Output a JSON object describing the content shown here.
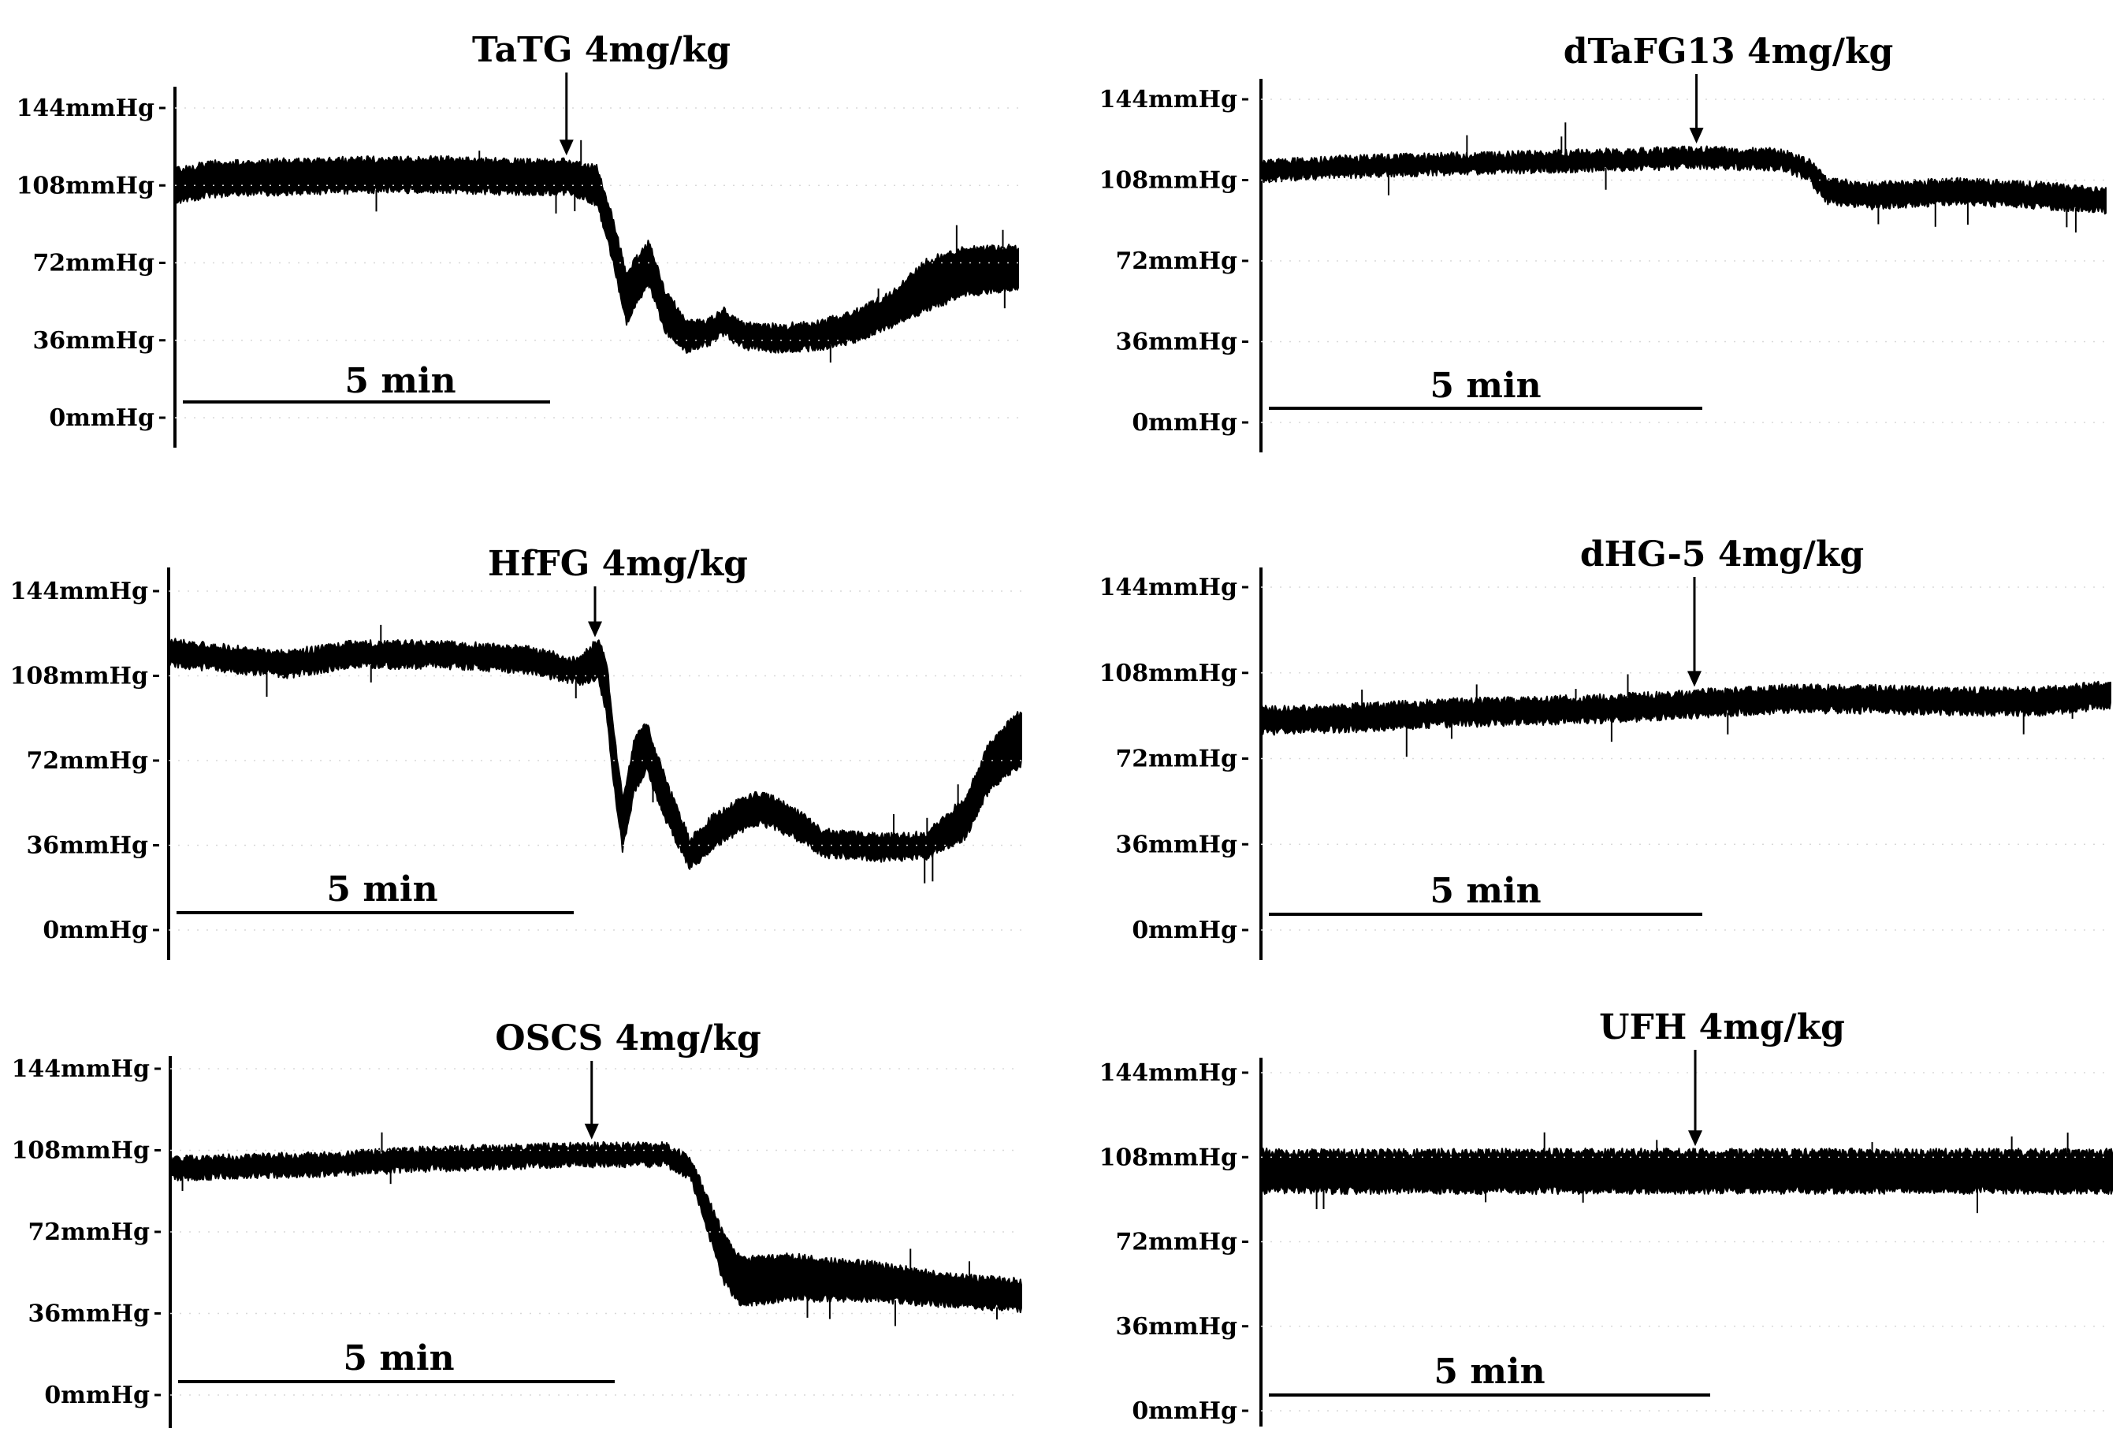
{
  "chart_data": [
    {
      "type": "line",
      "title": "TaTG 4mg/kg",
      "y_ticks": [
        "0mmHg",
        "36mmHg",
        "72mmHg",
        "108mmHg",
        "144mmHg"
      ],
      "ylim": [
        0,
        144
      ],
      "xlim_min": [
        0,
        11.2
      ],
      "scale_bar": {
        "label": "5 min",
        "minutes": 5
      },
      "injection_time_min": 5.2,
      "series": [
        {
          "points": [
            [
              0,
              108
            ],
            [
              0.5,
              111
            ],
            [
              1.5,
              112
            ],
            [
              2.5,
              113
            ],
            [
              3.5,
              113
            ],
            [
              4.5,
              112
            ],
            [
              5.2,
              112
            ],
            [
              5.6,
              108
            ],
            [
              5.8,
              85
            ],
            [
              6.0,
              55
            ],
            [
              6.1,
              62
            ],
            [
              6.3,
              72
            ],
            [
              6.5,
              50
            ],
            [
              6.8,
              38
            ],
            [
              7.1,
              40
            ],
            [
              7.3,
              45
            ],
            [
              7.45,
              40
            ],
            [
              7.6,
              38
            ],
            [
              8.0,
              37
            ],
            [
              8.5,
              38
            ],
            [
              9.0,
              42
            ],
            [
              9.5,
              50
            ],
            [
              10.0,
              62
            ],
            [
              10.5,
              68
            ],
            [
              11.2,
              70
            ]
          ],
          "amplitude": [
            [
              0,
              14
            ],
            [
              5.2,
              14
            ],
            [
              5.6,
              16
            ],
            [
              6.0,
              22
            ],
            [
              6.5,
              18
            ],
            [
              7.0,
              10
            ],
            [
              7.5,
              10
            ],
            [
              8.5,
              11
            ],
            [
              9.5,
              14
            ],
            [
              10.0,
              22
            ],
            [
              11.2,
              18
            ]
          ]
        }
      ]
    },
    {
      "type": "line",
      "title": "dTaFG13 4mg/kg",
      "y_ticks": [
        "0mmHg",
        "36mmHg",
        "72mmHg",
        "108mmHg",
        "144mmHg"
      ],
      "ylim": [
        0,
        144
      ],
      "xlim_min": [
        0,
        9.7
      ],
      "scale_bar": {
        "label": "5 min",
        "minutes": 5
      },
      "injection_time_min": 5.0,
      "series": [
        {
          "points": [
            [
              0,
              112
            ],
            [
              1,
              114
            ],
            [
              2,
              115
            ],
            [
              3,
              116
            ],
            [
              4,
              117
            ],
            [
              5,
              118
            ],
            [
              6,
              117
            ],
            [
              6.3,
              112
            ],
            [
              6.5,
              103
            ],
            [
              7,
              101
            ],
            [
              8,
              103
            ],
            [
              9,
              101
            ],
            [
              9.7,
              99
            ]
          ],
          "amplitude": [
            [
              0,
              7
            ],
            [
              6.2,
              7
            ],
            [
              6.5,
              9
            ],
            [
              9.7,
              9
            ]
          ]
        }
      ]
    },
    {
      "type": "line",
      "title": "HfFG 4mg/kg",
      "y_ticks": [
        "0mmHg",
        "36mmHg",
        "72mmHg",
        "108mmHg",
        "144mmHg"
      ],
      "ylim": [
        0,
        144
      ],
      "xlim_min": [
        0,
        10.8
      ],
      "scale_bar": {
        "label": "5 min",
        "minutes": 5
      },
      "injection_time_min": 5.4,
      "series": [
        {
          "points": [
            [
              0,
              118
            ],
            [
              0.8,
              115
            ],
            [
              1.5,
              113
            ],
            [
              2.3,
              117
            ],
            [
              3.5,
              117
            ],
            [
              4.5,
              115
            ],
            [
              5.2,
              110
            ],
            [
              5.45,
              115
            ],
            [
              5.55,
              102
            ],
            [
              5.65,
              70
            ],
            [
              5.75,
              45
            ],
            [
              5.9,
              70
            ],
            [
              6.05,
              78
            ],
            [
              6.3,
              55
            ],
            [
              6.6,
              32
            ],
            [
              6.9,
              42
            ],
            [
              7.2,
              48
            ],
            [
              7.5,
              52
            ],
            [
              7.9,
              46
            ],
            [
              8.3,
              37
            ],
            [
              9.0,
              35
            ],
            [
              9.6,
              36
            ],
            [
              10.1,
              48
            ],
            [
              10.4,
              70
            ],
            [
              10.8,
              82
            ]
          ],
          "amplitude": [
            [
              0,
              9
            ],
            [
              5.2,
              9
            ],
            [
              5.6,
              22
            ],
            [
              6.0,
              20
            ],
            [
              6.6,
              12
            ],
            [
              7.5,
              12
            ],
            [
              8.5,
              9
            ],
            [
              9.6,
              9
            ],
            [
              10.1,
              16
            ],
            [
              10.8,
              22
            ]
          ]
        }
      ]
    },
    {
      "type": "line",
      "title": "dHG-5 4mg/kg",
      "y_ticks": [
        "0mmHg",
        "36mmHg",
        "72mmHg",
        "108mmHg",
        "144mmHg"
      ],
      "ylim": [
        0,
        144
      ],
      "xlim_min": [
        0,
        9.8
      ],
      "scale_bar": {
        "label": "5 min",
        "minutes": 5
      },
      "injection_time_min": 5.0,
      "series": [
        {
          "points": [
            [
              0,
              88
            ],
            [
              1,
              89
            ],
            [
              2,
              91
            ],
            [
              3,
              92
            ],
            [
              4,
              93
            ],
            [
              5,
              95
            ],
            [
              6,
              97
            ],
            [
              7,
              97
            ],
            [
              8,
              96
            ],
            [
              9,
              96
            ],
            [
              9.8,
              99
            ]
          ],
          "amplitude": [
            [
              0,
              9
            ],
            [
              9.8,
              9
            ]
          ]
        }
      ]
    },
    {
      "type": "line",
      "title": "OSCS 4mg/kg",
      "y_ticks": [
        "0mmHg",
        "36mmHg",
        "72mmHg",
        "108mmHg",
        "144mmHg"
      ],
      "ylim": [
        0,
        144
      ],
      "xlim_min": [
        0,
        10.3
      ],
      "scale_bar": {
        "label": "5 min",
        "minutes": 5
      },
      "injection_time_min": 5.1,
      "series": [
        {
          "points": [
            [
              0,
              100
            ],
            [
              1,
              101
            ],
            [
              2,
              102
            ],
            [
              3,
              104
            ],
            [
              4,
              105
            ],
            [
              5,
              106
            ],
            [
              6.0,
              106
            ],
            [
              6.3,
              100
            ],
            [
              6.5,
              80
            ],
            [
              6.7,
              60
            ],
            [
              6.9,
              50
            ],
            [
              7.5,
              52
            ],
            [
              8.5,
              50
            ],
            [
              9.5,
              46
            ],
            [
              10.3,
              44
            ]
          ],
          "amplitude": [
            [
              0,
              8
            ],
            [
              6.3,
              8
            ],
            [
              6.7,
              20
            ],
            [
              7.5,
              18
            ],
            [
              9.5,
              12
            ],
            [
              10.3,
              12
            ]
          ]
        }
      ]
    },
    {
      "type": "line",
      "title": "UFH 4mg/kg",
      "y_ticks": [
        "0mmHg",
        "36mmHg",
        "72mmHg",
        "108mmHg",
        "144mmHg"
      ],
      "ylim": [
        0,
        144
      ],
      "xlim_min": [
        0,
        9.8
      ],
      "scale_bar": {
        "label": "5 min",
        "minutes": 5
      },
      "injection_time_min": 5.0,
      "series": [
        {
          "points": [
            [
              0,
              102
            ],
            [
              2,
              102
            ],
            [
              4,
              102
            ],
            [
              6,
              102
            ],
            [
              8,
              102
            ],
            [
              9.8,
              102
            ]
          ],
          "amplitude": [
            [
              0,
              16
            ],
            [
              9.8,
              16
            ]
          ]
        }
      ]
    }
  ]
}
